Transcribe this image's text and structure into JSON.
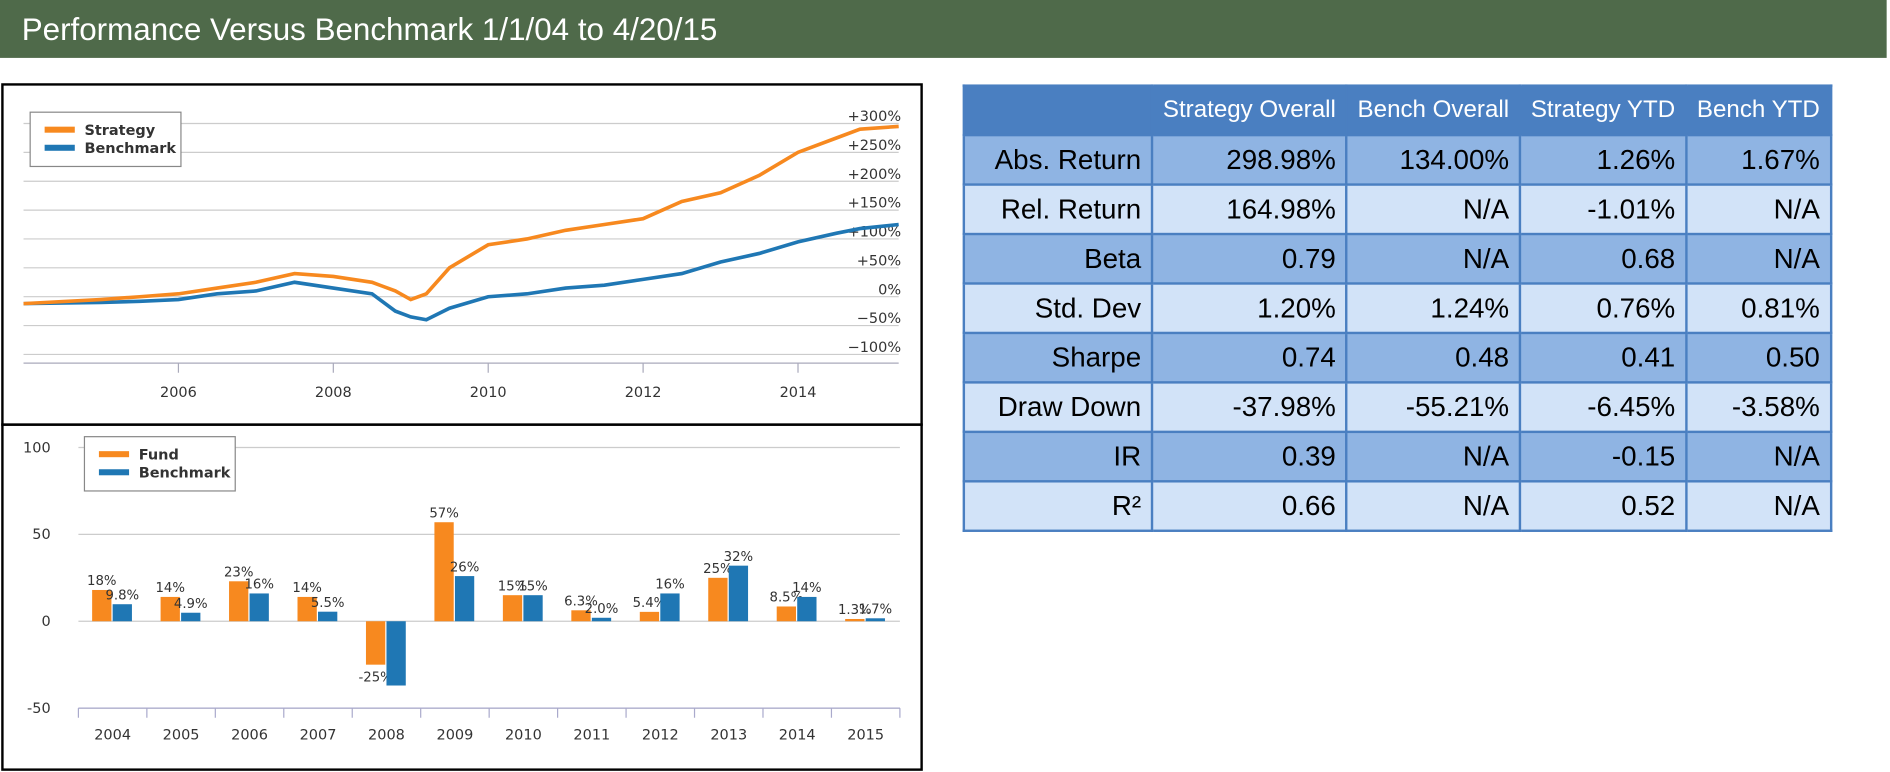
{
  "header": {
    "title": "Performance Versus Benchmark 1/1/04 to 4/20/15"
  },
  "chart_data": [
    {
      "type": "line",
      "x": [
        2004,
        2005,
        2005.5,
        2006,
        2006.5,
        2007,
        2007.5,
        2008,
        2008.5,
        2008.8,
        2009,
        2009.2,
        2009.5,
        2010,
        2010.5,
        2011,
        2011.5,
        2012,
        2012.5,
        2013,
        2013.5,
        2014,
        2014.5,
        2014.8,
        2015.3
      ],
      "series": [
        {
          "name": "Strategy",
          "color": "#f7891f",
          "values": [
            -12,
            -5,
            0,
            5,
            15,
            25,
            40,
            35,
            25,
            10,
            -5,
            5,
            50,
            90,
            100,
            115,
            125,
            135,
            165,
            180,
            210,
            250,
            275,
            290,
            295
          ]
        },
        {
          "name": "Benchmark",
          "color": "#1f77b4",
          "values": [
            -12,
            -10,
            -8,
            -5,
            5,
            10,
            25,
            15,
            5,
            -25,
            -35,
            -40,
            -20,
            0,
            5,
            15,
            20,
            30,
            40,
            60,
            75,
            95,
            110,
            118,
            125
          ]
        }
      ],
      "xlim": [
        2004,
        2015.3
      ],
      "xticks": [
        2006,
        2008,
        2010,
        2012,
        2014
      ],
      "ylim": [
        -115,
        330
      ],
      "yticks": [
        {
          "value": 300,
          "label": "+300%"
        },
        {
          "value": 250,
          "label": "+250%"
        },
        {
          "value": 200,
          "label": "+200%"
        },
        {
          "value": 150,
          "label": "+150%"
        },
        {
          "value": 100,
          "label": "+100%"
        },
        {
          "value": 50,
          "label": "+50%"
        },
        {
          "value": 0,
          "label": "0%"
        },
        {
          "value": -50,
          "label": "−50%"
        },
        {
          "value": -100,
          "label": "−100%"
        }
      ],
      "grid": true,
      "legend": "upper left"
    },
    {
      "type": "bar",
      "categories": [
        "2004",
        "2005",
        "2006",
        "2007",
        "2008",
        "2009",
        "2010",
        "2011",
        "2012",
        "2013",
        "2014",
        "2015"
      ],
      "series": [
        {
          "name": "Fund",
          "color": "#f7891f",
          "values": [
            18,
            14,
            23,
            14,
            -25,
            57,
            15,
            6.3,
            5.4,
            25,
            8.5,
            1.3
          ],
          "value_labels": [
            "18%",
            "14%",
            "23%",
            "14%",
            "-25%",
            "57%",
            "15%",
            "6.3%",
            "5.4%",
            "25%",
            "8.5%",
            "1.3%"
          ]
        },
        {
          "name": "Benchmark",
          "color": "#1f77b4",
          "values": [
            9.8,
            4.9,
            16,
            5.5,
            -37,
            26,
            15,
            2.0,
            16,
            32,
            14,
            1.7
          ],
          "value_labels": [
            "9.8%",
            "4.9%",
            "16%",
            "5.5%",
            null,
            "26%",
            "15%",
            "2.0%",
            "16%",
            "32%",
            "14%",
            "1.7%"
          ]
        }
      ],
      "ylim": [
        -50,
        100
      ],
      "yticks": [
        -50,
        0,
        50,
        100
      ],
      "grid": true,
      "legend": "upper left"
    }
  ],
  "table": {
    "columns": [
      "Strategy Overall",
      "Bench Overall",
      "Strategy YTD",
      "Bench YTD"
    ],
    "rows": [
      [
        "Abs. Return",
        "298.98%",
        "134.00%",
        "1.26%",
        "1.67%"
      ],
      [
        "Rel. Return",
        "164.98%",
        "N/A",
        "-1.01%",
        "N/A"
      ],
      [
        "Beta",
        "0.79",
        "N/A",
        "0.68",
        "N/A"
      ],
      [
        "Std. Dev",
        "1.20%",
        "1.24%",
        "0.76%",
        "0.81%"
      ],
      [
        "Sharpe",
        "0.74",
        "0.48",
        "0.41",
        "0.50"
      ],
      [
        "Draw Down",
        "-37.98%",
        "-55.21%",
        "-6.45%",
        "-3.58%"
      ],
      [
        "IR",
        "0.39",
        "N/A",
        "-0.15",
        "N/A"
      ],
      [
        "R²",
        "0.66",
        "N/A",
        "0.52",
        "N/A"
      ]
    ]
  }
}
